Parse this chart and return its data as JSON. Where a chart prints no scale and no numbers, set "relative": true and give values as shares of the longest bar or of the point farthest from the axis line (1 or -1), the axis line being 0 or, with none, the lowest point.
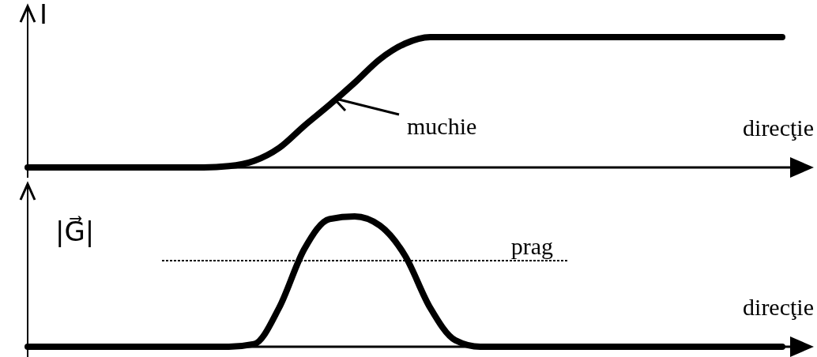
{
  "chart_data": [
    {
      "type": "line",
      "relative": true,
      "ylabel": "I",
      "xlabel": "direcţie",
      "annotations": [
        "muchie"
      ],
      "color": "#000000",
      "categories": [
        null,
        null,
        null,
        null,
        null,
        null,
        null,
        null,
        null,
        null,
        null,
        null,
        null,
        null,
        null,
        null,
        null,
        null,
        null,
        null,
        null,
        null,
        null,
        null,
        null,
        null,
        null,
        null,
        null,
        null,
        null
      ],
      "values": [
        0,
        0,
        0,
        0,
        0,
        0,
        0,
        0,
        0.01,
        0.05,
        0.15,
        0.32,
        0.48,
        0.65,
        0.83,
        0.95,
        1,
        1,
        1,
        1,
        1,
        1,
        1,
        1,
        1,
        1,
        1,
        1,
        1,
        1,
        1
      ]
    },
    {
      "type": "line",
      "relative": true,
      "ylabel": "|G⃗|",
      "xlabel": "direcţie",
      "color": "#000000",
      "ref_lines": [
        {
          "axis": "y",
          "value": 0.66,
          "label": "prag"
        }
      ],
      "categories": [
        null,
        null,
        null,
        null,
        null,
        null,
        null,
        null,
        null,
        null,
        null,
        null,
        null,
        null,
        null,
        null,
        null,
        null,
        null,
        null,
        null,
        null,
        null,
        null,
        null,
        null,
        null,
        null,
        null,
        null,
        null
      ],
      "values": [
        0,
        0,
        0,
        0,
        0,
        0,
        0,
        0,
        0,
        0.02,
        0.3,
        0.75,
        0.98,
        1,
        0.93,
        0.7,
        0.3,
        0.05,
        0,
        0,
        0,
        0,
        0,
        0,
        0,
        0,
        0,
        0,
        0,
        0,
        0
      ]
    }
  ]
}
